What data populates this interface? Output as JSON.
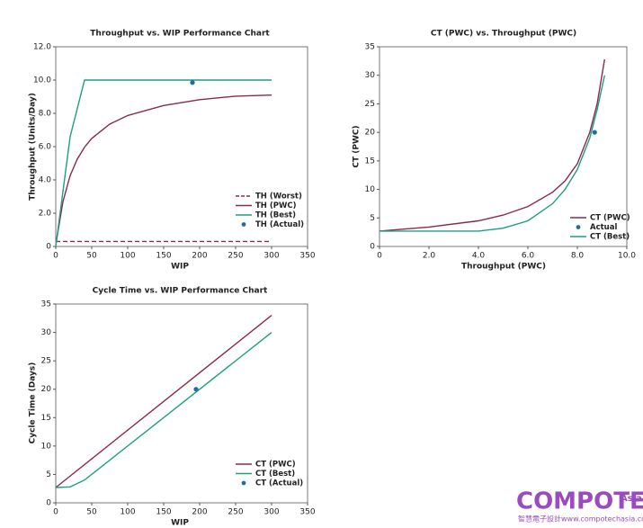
{
  "chart_data": [
    {
      "type": "line",
      "title": "Throughput vs. WIP Performance Chart",
      "xlabel": "WIP",
      "ylabel": "Throughput (Units/Day)",
      "xlim": [
        0,
        350
      ],
      "xticks": [
        0,
        50,
        100,
        150,
        200,
        250,
        300,
        350
      ],
      "ylim": [
        0,
        12
      ],
      "yticks": [
        0,
        {
          "value": 2,
          "label": "2.0"
        },
        {
          "value": 4,
          "label": "4.0"
        },
        {
          "value": 6,
          "label": "6.0"
        },
        {
          "value": 8,
          "label": "8.0"
        },
        {
          "value": 10,
          "label": "10.0"
        },
        {
          "value": 12,
          "label": "12.0"
        }
      ],
      "grid": false,
      "legend": "lower right",
      "series": [
        {
          "name": "TH (Worst)",
          "color": "#8b2a4a",
          "style": "dashed",
          "x": [
            0,
            300
          ],
          "values": [
            0.3,
            0.3
          ]
        },
        {
          "name": "TH (PWC)",
          "color": "#8b2a4a",
          "style": "solid",
          "x": [
            1,
            10,
            20,
            30,
            40,
            50,
            75,
            100,
            150,
            200,
            250,
            300
          ],
          "values": [
            0.36,
            2.7,
            4.26,
            5.26,
            5.97,
            6.49,
            7.35,
            7.87,
            8.47,
            8.82,
            9.03,
            9.1
          ]
        },
        {
          "name": "TH (Best)",
          "color": "#1f9e82",
          "style": "solid",
          "x": [
            0,
            20,
            40,
            300
          ],
          "values": [
            0,
            6.6,
            10,
            10
          ]
        },
        {
          "name": "TH (Actual)",
          "color": "#1f6f9e",
          "style": "marker",
          "x": [
            190
          ],
          "values": [
            9.85
          ]
        }
      ]
    },
    {
      "type": "line",
      "title": "CT (PWC) vs. Throughput (PWC)",
      "xlabel": "Throughput (PWC)",
      "ylabel": "CT (PWC)",
      "xlim": [
        0,
        10
      ],
      "xticks": [
        0,
        {
          "value": 2,
          "label": "2.0"
        },
        {
          "value": 4,
          "label": "4.0"
        },
        {
          "value": 6,
          "label": "6.0"
        },
        {
          "value": 8,
          "label": "8.0"
        },
        {
          "value": 10,
          "label": "10.0"
        }
      ],
      "ylim": [
        0,
        35
      ],
      "yticks": [
        0,
        5,
        10,
        15,
        20,
        25,
        30,
        35
      ],
      "grid": false,
      "legend": "lower right",
      "series": [
        {
          "name": "CT (PWC)",
          "color": "#8b2a4a",
          "style": "solid",
          "x": [
            0,
            2,
            4,
            5,
            6,
            7,
            7.5,
            8,
            8.5,
            8.8,
            9.1
          ],
          "values": [
            2.7,
            3.4,
            4.5,
            5.5,
            7,
            9.5,
            11.5,
            14.5,
            20,
            25,
            32.8
          ]
        },
        {
          "name": "Actual",
          "color": "#1f6f9e",
          "style": "marker",
          "x": [
            8.7
          ],
          "values": [
            20
          ]
        },
        {
          "name": "CT (Best)",
          "color": "#1f9e82",
          "style": "solid",
          "x": [
            0,
            4,
            5,
            6,
            7,
            7.5,
            8,
            8.5,
            8.8,
            9.1
          ],
          "values": [
            2.7,
            2.7,
            3.2,
            4.5,
            7.5,
            10,
            13.5,
            19,
            24,
            30
          ]
        }
      ]
    },
    {
      "type": "line",
      "title": "Cycle Time vs. WIP Performance Chart",
      "xlabel": "WIP",
      "ylabel": "Cycle Time (Days)",
      "xlim": [
        0,
        350
      ],
      "xticks": [
        0,
        50,
        100,
        150,
        200,
        250,
        300,
        350
      ],
      "ylim": [
        0,
        35
      ],
      "yticks": [
        0,
        5,
        10,
        15,
        20,
        25,
        30,
        35
      ],
      "grid": false,
      "legend": "lower right",
      "series": [
        {
          "name": "CT (PWC)",
          "color": "#8b2a4a",
          "style": "solid",
          "x": [
            0,
            300
          ],
          "values": [
            2.7,
            33
          ]
        },
        {
          "name": "CT (Best)",
          "color": "#1f9e82",
          "style": "solid",
          "x": [
            0,
            20,
            40,
            300
          ],
          "values": [
            2.7,
            2.8,
            4,
            30
          ]
        },
        {
          "name": "CT (Actual)",
          "color": "#1f6f9e",
          "style": "marker",
          "x": [
            195
          ],
          "values": [
            20
          ]
        }
      ]
    }
  ],
  "logo": {
    "name": "COMPOTECH",
    "region": "Asia",
    "tagline": "智慧電子設計www.compotechasia.com"
  }
}
